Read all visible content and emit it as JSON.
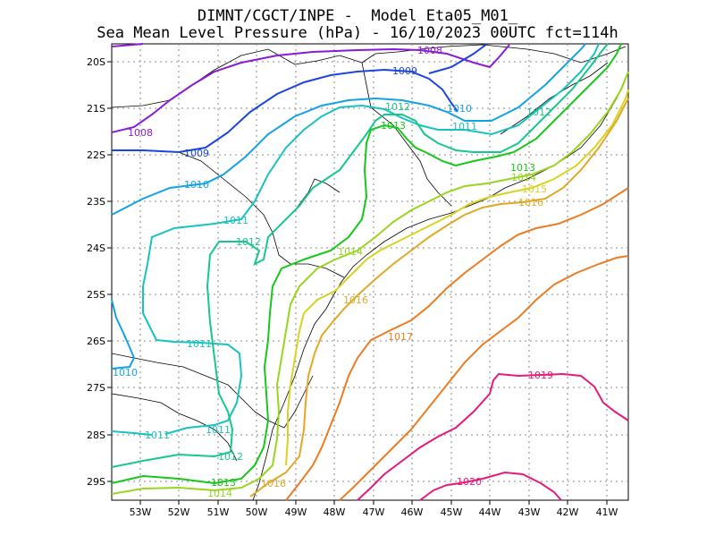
{
  "title_line1": "DIMNT/CGCT/INPE -  Model Eta05_M01_",
  "title_line2": "Sea Mean Level Pressure (hPa) - 16/10/2023 00UTC fct=114h",
  "lon_ticks": [
    "53W",
    "52W",
    "51W",
    "50W",
    "49W",
    "48W",
    "47W",
    "46W",
    "45W",
    "44W",
    "43W",
    "42W",
    "41W"
  ],
  "lat_ticks": [
    "20S",
    "21S",
    "22S",
    "23S",
    "24S",
    "25S",
    "26S",
    "27S",
    "28S",
    "29S"
  ],
  "isobars": [
    {
      "value": 1008,
      "color": "#8a1ad6",
      "labels": [
        {
          "text": "1008"
        },
        {
          "text": "1008"
        }
      ]
    },
    {
      "value": 1009,
      "color": "#1c44e0",
      "labels": [
        {
          "text": "1009"
        },
        {
          "text": "1009"
        }
      ]
    },
    {
      "value": 1010,
      "color": "#14a2e6",
      "labels": [
        {
          "text": "1010"
        },
        {
          "text": "1010"
        },
        {
          "text": "1010"
        }
      ]
    },
    {
      "value": 1011,
      "color": "#18c2c0",
      "labels": [
        {
          "text": "1011"
        },
        {
          "text": "1011"
        },
        {
          "text": "1011"
        },
        {
          "text": "1011"
        },
        {
          "text": "1011"
        }
      ]
    },
    {
      "value": 1012,
      "color": "#16c88a",
      "labels": [
        {
          "text": "1012"
        },
        {
          "text": "1012"
        },
        {
          "text": "1012"
        },
        {
          "text": "1012"
        }
      ]
    },
    {
      "value": 1013,
      "color": "#16c81a",
      "labels": [
        {
          "text": "1013"
        },
        {
          "text": "1013"
        },
        {
          "text": "1013"
        }
      ]
    },
    {
      "value": 1014,
      "color": "#98d61e",
      "labels": [
        {
          "text": "1014"
        },
        {
          "text": "1014"
        },
        {
          "text": "1014"
        }
      ]
    },
    {
      "value": 1015,
      "color": "#d6d420",
      "labels": [
        {
          "text": "1015"
        }
      ]
    },
    {
      "value": 1016,
      "color": "#e0a826",
      "labels": [
        {
          "text": "1016"
        },
        {
          "text": "1016"
        },
        {
          "text": "1016"
        }
      ]
    },
    {
      "value": 1017,
      "color": "#ec7c22",
      "labels": [
        {
          "text": "1017"
        }
      ]
    },
    {
      "value": 1019,
      "color": "#e61a7a",
      "labels": [
        {
          "text": "1019"
        }
      ]
    },
    {
      "value": 1020,
      "color": "#e61a7a",
      "labels": [
        {
          "text": "1020"
        }
      ]
    }
  ]
}
